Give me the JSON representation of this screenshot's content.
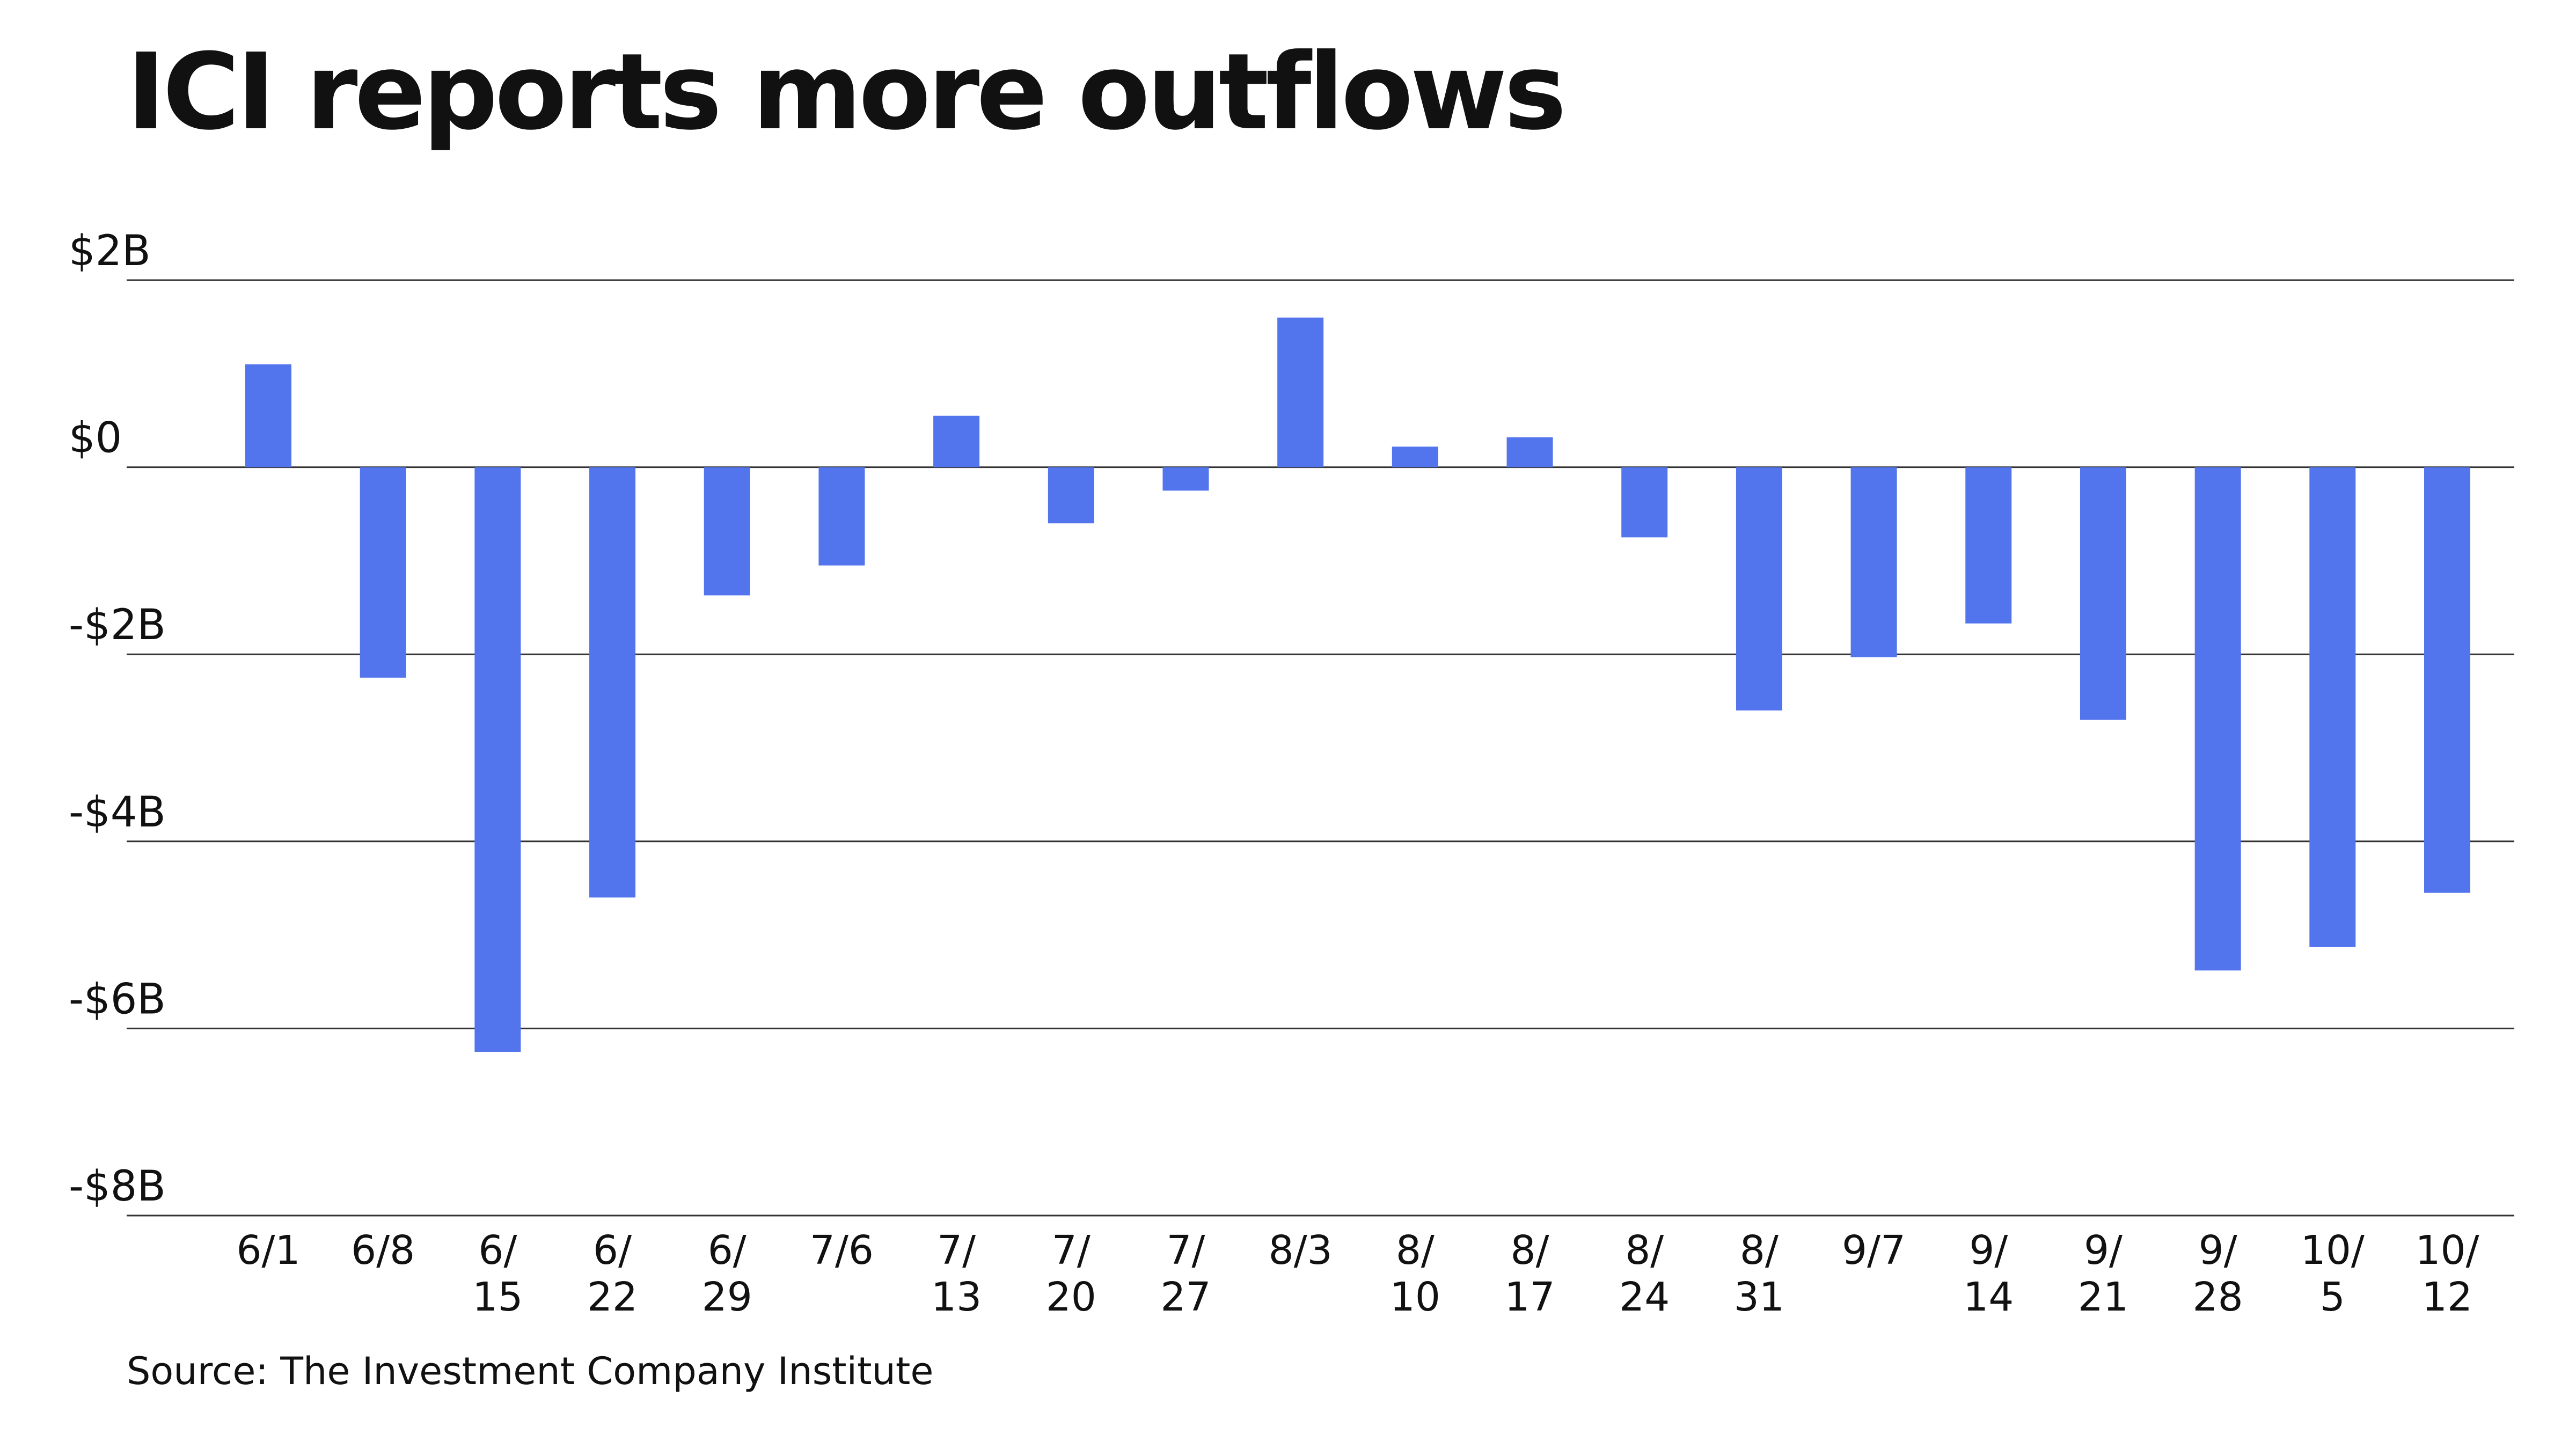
{
  "chart_data": {
    "type": "bar",
    "title": "ICI reports more outflows",
    "source": "Source: The Investment Company Institute",
    "categories": [
      "6/1",
      "6/8",
      "6/15",
      "6/22",
      "6/29",
      "7/6",
      "7/13",
      "7/20",
      "7/27",
      "8/3",
      "8/10",
      "8/17",
      "8/24",
      "8/31",
      "9/7",
      "9/14",
      "9/21",
      "9/28",
      "10/5",
      "10/12"
    ],
    "category_labels": [
      [
        "6/1"
      ],
      [
        "6/8"
      ],
      [
        "6/",
        "15"
      ],
      [
        "6/",
        "22"
      ],
      [
        "6/",
        "29"
      ],
      [
        "7/6"
      ],
      [
        "7/",
        "13"
      ],
      [
        "7/",
        "20"
      ],
      [
        "7/",
        "27"
      ],
      [
        "8/3"
      ],
      [
        "8/",
        "10"
      ],
      [
        "8/",
        "17"
      ],
      [
        "8/",
        "24"
      ],
      [
        "8/",
        "31"
      ],
      [
        "9/7"
      ],
      [
        "9/",
        "14"
      ],
      [
        "9/",
        "21"
      ],
      [
        "9/",
        "28"
      ],
      [
        "10/",
        "5"
      ],
      [
        "10/",
        "12"
      ]
    ],
    "values": [
      1.1,
      -2.25,
      -6.25,
      -4.6,
      -1.37,
      -1.05,
      0.55,
      -0.6,
      -0.25,
      1.6,
      0.22,
      0.32,
      -0.75,
      -2.6,
      -2.03,
      -1.67,
      -2.7,
      -5.38,
      -5.13,
      -4.55
    ],
    "unit": "billions USD",
    "ylim": [
      -8,
      2
    ],
    "yticks": [
      2,
      0,
      -2,
      -4,
      -6,
      -8
    ],
    "ytick_labels": [
      "$2B",
      "$0",
      "-$2B",
      "-$4B",
      "-$6B",
      "-$8B"
    ],
    "grid": true,
    "legend": "none",
    "colors": {
      "bar": "#5274ED",
      "grid": "#333333",
      "text": "#111111"
    }
  }
}
